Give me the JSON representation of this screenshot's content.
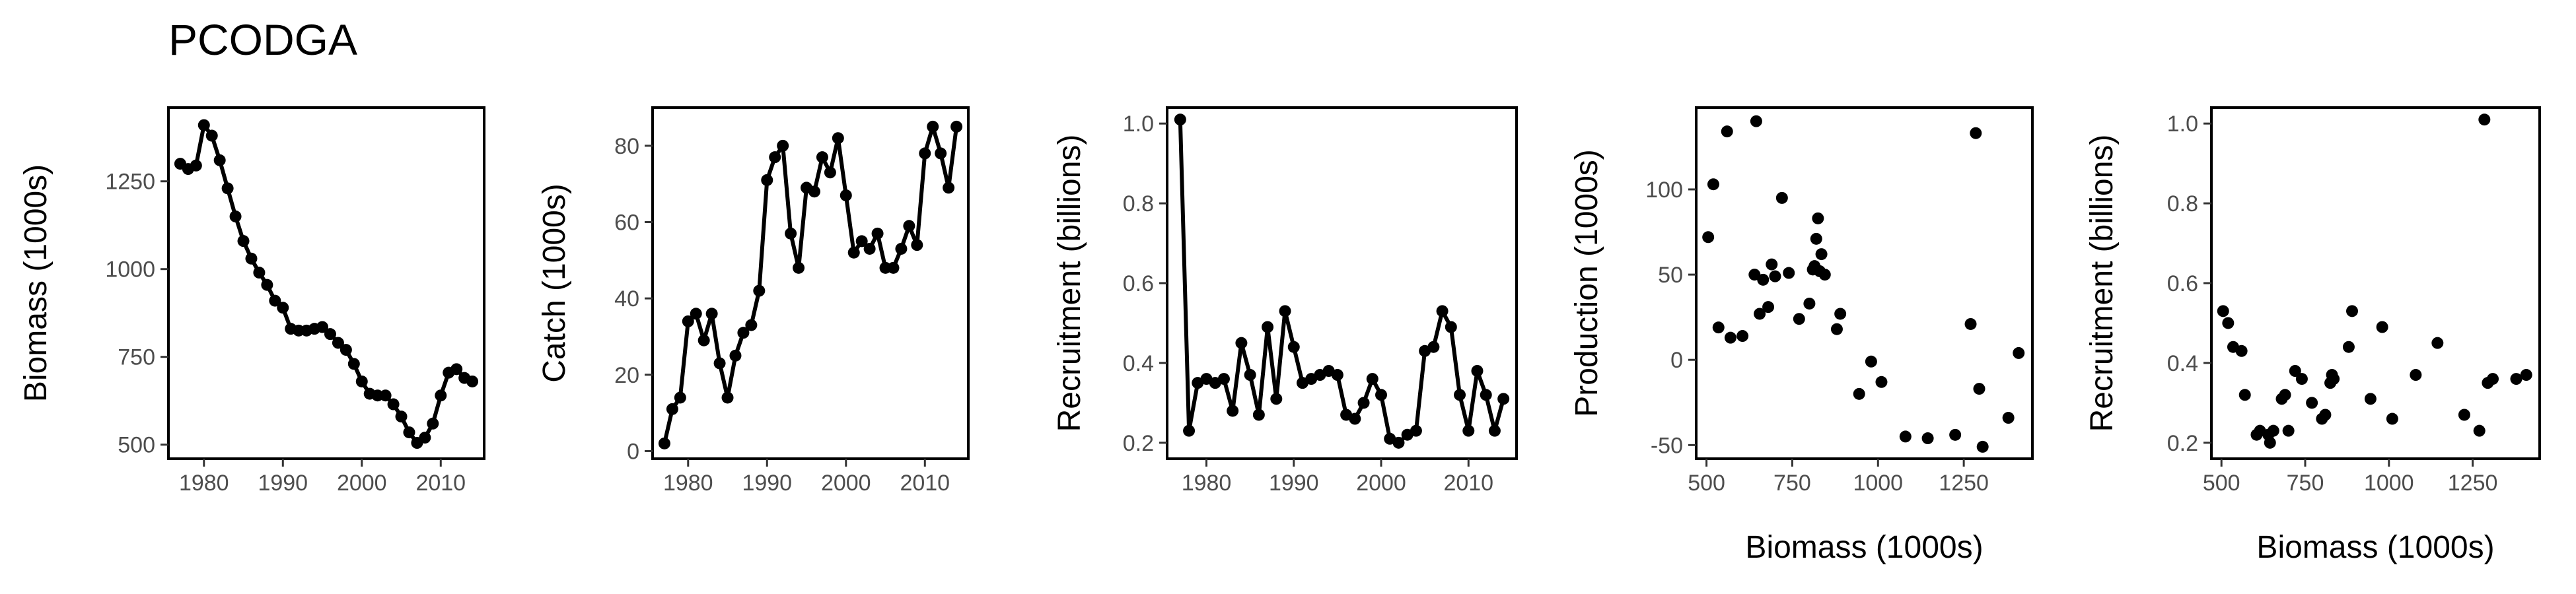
{
  "title": "PCODGA",
  "colors": {
    "series": "#000000",
    "axis": "#000000",
    "tick_text": "#4d4d4d"
  },
  "chart_data": [
    {
      "type": "line",
      "xlabel": "",
      "ylabel": "Biomass (1000s)",
      "xlim": [
        1975.5,
        2015.5
      ],
      "ylim": [
        460,
        1460
      ],
      "xticks": [
        1980,
        1990,
        2000,
        2010
      ],
      "yticks": [
        500,
        750,
        1000,
        1250
      ],
      "x": [
        1977,
        1978,
        1979,
        1980,
        1981,
        1982,
        1983,
        1984,
        1985,
        1986,
        1987,
        1988,
        1989,
        1990,
        1991,
        1992,
        1993,
        1994,
        1995,
        1996,
        1997,
        1998,
        1999,
        2000,
        2001,
        2002,
        2003,
        2004,
        2005,
        2006,
        2007,
        2008,
        2009,
        2010,
        2011,
        2012,
        2013,
        2014
      ],
      "y": [
        1300,
        1285,
        1295,
        1410,
        1380,
        1310,
        1230,
        1150,
        1080,
        1030,
        990,
        955,
        910,
        890,
        830,
        825,
        825,
        830,
        835,
        815,
        790,
        770,
        730,
        680,
        645,
        640,
        640,
        615,
        580,
        535,
        505,
        520,
        560,
        640,
        705,
        715,
        690,
        680
      ]
    },
    {
      "type": "line",
      "xlabel": "",
      "ylabel": "Catch (1000s)",
      "xlim": [
        1975.5,
        2015.5
      ],
      "ylim": [
        -2,
        90
      ],
      "xticks": [
        1980,
        1990,
        2000,
        2010
      ],
      "yticks": [
        0,
        20,
        40,
        60,
        80
      ],
      "x": [
        1977,
        1978,
        1979,
        1980,
        1981,
        1982,
        1983,
        1984,
        1985,
        1986,
        1987,
        1988,
        1989,
        1990,
        1991,
        1992,
        1993,
        1994,
        1995,
        1996,
        1997,
        1998,
        1999,
        2000,
        2001,
        2002,
        2003,
        2004,
        2005,
        2006,
        2007,
        2008,
        2009,
        2010,
        2011,
        2012,
        2013,
        2014
      ],
      "y": [
        2,
        11,
        14,
        34,
        36,
        29,
        36,
        23,
        14,
        25,
        31,
        33,
        42,
        71,
        77,
        80,
        57,
        48,
        69,
        68,
        77,
        73,
        82,
        67,
        52,
        55,
        53,
        57,
        48,
        48,
        53,
        59,
        54,
        78,
        85,
        78,
        69,
        85
      ]
    },
    {
      "type": "line",
      "xlabel": "",
      "ylabel": "Recruitment (billions)",
      "xlim": [
        1975.5,
        2015.5
      ],
      "ylim": [
        0.16,
        1.04
      ],
      "xticks": [
        1980,
        1990,
        2000,
        2010
      ],
      "yticks": [
        0.2,
        0.4,
        0.6,
        0.8,
        1.0
      ],
      "x": [
        1977,
        1978,
        1979,
        1980,
        1981,
        1982,
        1983,
        1984,
        1985,
        1986,
        1987,
        1988,
        1989,
        1990,
        1991,
        1992,
        1993,
        1994,
        1995,
        1996,
        1997,
        1998,
        1999,
        2000,
        2001,
        2002,
        2003,
        2004,
        2005,
        2006,
        2007,
        2008,
        2009,
        2010,
        2011,
        2012,
        2013,
        2014
      ],
      "y": [
        1.01,
        0.23,
        0.35,
        0.36,
        0.35,
        0.36,
        0.28,
        0.45,
        0.37,
        0.27,
        0.49,
        0.31,
        0.53,
        0.44,
        0.35,
        0.36,
        0.37,
        0.38,
        0.37,
        0.27,
        0.26,
        0.3,
        0.36,
        0.32,
        0.21,
        0.2,
        0.22,
        0.23,
        0.43,
        0.44,
        0.53,
        0.49,
        0.32,
        0.23,
        0.38,
        0.32,
        0.23,
        0.31
      ]
    },
    {
      "type": "scatter",
      "xlabel": "Biomass (1000s)",
      "ylabel": "Production (1000s)",
      "xlim": [
        470,
        1450
      ],
      "ylim": [
        -58,
        148
      ],
      "xticks": [
        500,
        750,
        1000,
        1250
      ],
      "yticks": [
        -50,
        0,
        50,
        100
      ],
      "x": [
        505,
        520,
        535,
        560,
        570,
        605,
        640,
        645,
        655,
        665,
        680,
        690,
        700,
        720,
        740,
        770,
        800,
        810,
        815,
        820,
        825,
        830,
        835,
        845,
        880,
        890,
        945,
        980,
        1010,
        1080,
        1145,
        1225,
        1270,
        1285,
        1295,
        1305,
        1380,
        1410
      ],
      "y": [
        72,
        103,
        19,
        134,
        13,
        14,
        50,
        140,
        27,
        47,
        31,
        56,
        49,
        95,
        51,
        24,
        33,
        53,
        55,
        71,
        83,
        52,
        62,
        50,
        18,
        27,
        -20,
        -1,
        -13,
        -45,
        -46,
        -44,
        21,
        133,
        -17,
        -51,
        -34,
        4
      ]
    },
    {
      "type": "scatter",
      "xlabel": "Biomass (1000s)",
      "ylabel": "Recruitment (billions)",
      "xlim": [
        470,
        1450
      ],
      "ylim": [
        0.16,
        1.04
      ],
      "xticks": [
        500,
        750,
        1000,
        1250
      ],
      "yticks": [
        0.2,
        0.4,
        0.6,
        0.8,
        1.0
      ],
      "x": [
        505,
        520,
        535,
        560,
        570,
        605,
        615,
        640,
        645,
        655,
        680,
        690,
        700,
        720,
        740,
        770,
        800,
        810,
        825,
        830,
        835,
        880,
        890,
        945,
        980,
        1010,
        1080,
        1145,
        1225,
        1270,
        1285,
        1295,
        1310,
        1380,
        1410
      ],
      "y": [
        0.53,
        0.5,
        0.44,
        0.43,
        0.32,
        0.22,
        0.23,
        0.22,
        0.2,
        0.23,
        0.31,
        0.32,
        0.23,
        0.38,
        0.36,
        0.3,
        0.26,
        0.27,
        0.35,
        0.37,
        0.36,
        0.44,
        0.53,
        0.31,
        0.49,
        0.26,
        0.37,
        0.45,
        0.27,
        0.23,
        1.01,
        0.35,
        0.36,
        0.36,
        0.37
      ]
    }
  ]
}
